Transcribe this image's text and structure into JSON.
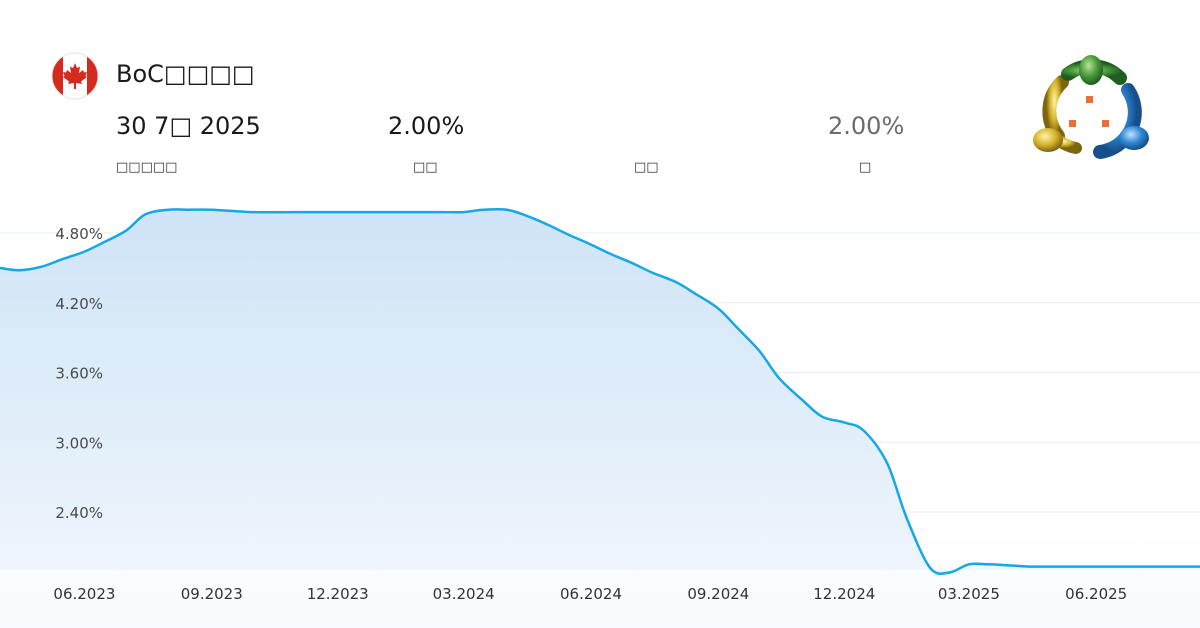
{
  "header": {
    "title": "BoC□□□□",
    "date": "30 7□ 2025",
    "date_label": "□□□□□",
    "actual": "2.00%",
    "actual_label": "□□",
    "forecast": "",
    "forecast_label": "□□",
    "previous": "2.00%",
    "previous_label": "□",
    "flag_icon": "canada-flag-icon",
    "logo_icon": "metatrader-logo-icon"
  },
  "colors": {
    "line": "#15a7e6",
    "fill_top": "#cfe4f7",
    "fill_bottom": "#eef5fc",
    "grid": "#e6edf3",
    "flag_red": "#d52b1e"
  },
  "chart_data": {
    "type": "area",
    "title": "",
    "xlabel": "",
    "ylabel": "",
    "ylim": [
      1.8,
      5.1
    ],
    "yticks": [
      2.4,
      3.0,
      3.6,
      4.2,
      4.8
    ],
    "ytick_labels": [
      "2.40%",
      "3.00%",
      "3.60%",
      "4.20%",
      "4.80%"
    ],
    "xlim": [
      "2023-04-01",
      "2025-08-15"
    ],
    "xticks": [
      "2023-06-01",
      "2023-09-01",
      "2023-12-01",
      "2024-03-01",
      "2024-06-01",
      "2024-09-01",
      "2024-12-01",
      "2025-03-01",
      "2025-06-01"
    ],
    "xtick_labels": [
      "06.2023",
      "09.2023",
      "12.2023",
      "03.2024",
      "06.2024",
      "09.2024",
      "12.2024",
      "03.2025",
      "06.2025"
    ],
    "grid": true,
    "legend": "none",
    "series": [
      {
        "x": [
          "2023-04-01",
          "2023-04-15",
          "2023-05-01",
          "2023-05-15",
          "2023-06-01",
          "2023-06-15",
          "2023-07-01",
          "2023-07-15",
          "2023-08-01",
          "2023-08-15",
          "2023-09-01",
          "2023-10-01",
          "2023-11-01",
          "2023-12-01",
          "2024-01-01",
          "2024-02-01",
          "2024-02-15",
          "2024-03-01",
          "2024-03-15",
          "2024-04-01",
          "2024-04-15",
          "2024-05-01",
          "2024-05-15",
          "2024-06-01",
          "2024-06-15",
          "2024-07-01",
          "2024-07-15",
          "2024-08-01",
          "2024-08-15",
          "2024-09-01",
          "2024-09-15",
          "2024-10-01",
          "2024-10-15",
          "2024-11-01",
          "2024-11-15",
          "2024-12-01",
          "2024-12-15",
          "2025-01-01",
          "2025-01-15",
          "2025-02-01",
          "2025-02-15",
          "2025-03-01",
          "2025-03-15",
          "2025-04-01",
          "2025-04-15",
          "2025-05-01",
          "2025-06-01",
          "2025-07-01",
          "2025-08-15"
        ],
        "values": [
          4.5,
          4.48,
          4.51,
          4.57,
          4.64,
          4.72,
          4.82,
          4.96,
          5.0,
          5.0,
          5.0,
          4.98,
          4.98,
          4.98,
          4.98,
          4.98,
          4.98,
          4.98,
          5.0,
          5.0,
          4.95,
          4.87,
          4.79,
          4.7,
          4.62,
          4.54,
          4.46,
          4.38,
          4.28,
          4.15,
          3.98,
          3.78,
          3.55,
          3.36,
          3.22,
          3.17,
          3.1,
          2.82,
          2.35,
          1.92,
          1.88,
          1.95,
          1.95,
          1.94,
          1.93,
          1.93,
          1.93,
          1.93,
          1.93
        ]
      }
    ]
  }
}
